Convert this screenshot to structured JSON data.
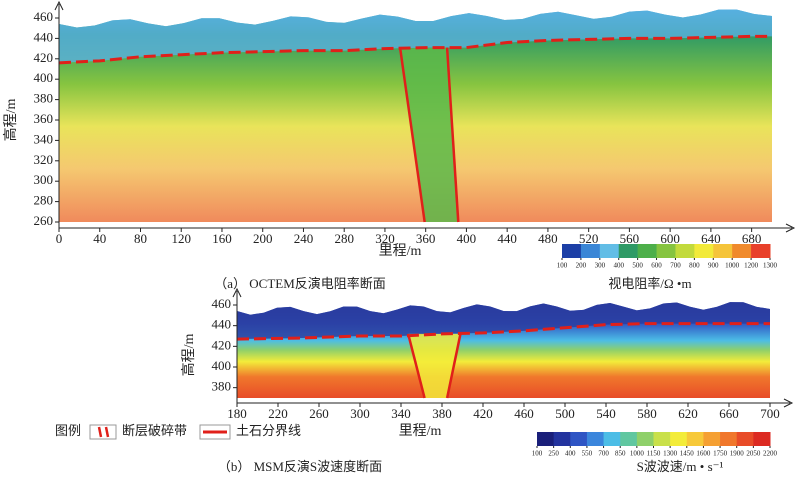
{
  "chart_data": [
    {
      "type": "contour",
      "title": "（a） OCTEM反演电阻率断面",
      "xlabel": "里程/m",
      "ylabel": "高程/m",
      "xlim": [
        0,
        700
      ],
      "ylim": [
        260,
        460
      ],
      "xticks": [
        0,
        40,
        80,
        120,
        160,
        200,
        240,
        280,
        320,
        360,
        400,
        440,
        480,
        520,
        560,
        600,
        640,
        680
      ],
      "yticks": [
        260,
        280,
        300,
        320,
        340,
        360,
        380,
        400,
        420,
        440,
        460
      ],
      "series": [
        {
          "name": "土石分界线",
          "color": "#e0201a",
          "x": [
            0,
            40,
            80,
            120,
            160,
            200,
            240,
            280,
            320,
            360,
            400,
            440,
            480,
            520,
            560,
            600,
            640,
            680,
            700
          ],
          "values": [
            416,
            418,
            422,
            424,
            426,
            427,
            428,
            428,
            430,
            431,
            431,
            436,
            438,
            439,
            440,
            440,
            441,
            442,
            442
          ]
        }
      ],
      "fault_zone": {
        "color": "#e0201a",
        "left": {
          "x": [
            335,
            359
          ],
          "values": [
            430,
            260
          ]
        },
        "right": {
          "x": [
            381,
            392
          ],
          "values": [
            431,
            260
          ]
        }
      },
      "colorbar": {
        "label": "视电阻率/Ω •m",
        "ticks": [
          100,
          200,
          300,
          400,
          500,
          600,
          700,
          800,
          900,
          1000,
          1200,
          1300
        ],
        "colors": [
          "#1c3fa6",
          "#3a86d6",
          "#62bde6",
          "#2f9a66",
          "#4daf4a",
          "#86c440",
          "#c2da3c",
          "#f2ea3a",
          "#f5c43a",
          "#f08a2c",
          "#e8402a"
        ]
      }
    },
    {
      "type": "contour",
      "title": "（b） MSM反演S波速度断面",
      "xlabel": "里程/m",
      "ylabel": "高程/m",
      "xlim": [
        180,
        700
      ],
      "ylim": [
        370,
        460
      ],
      "xticks": [
        180,
        220,
        260,
        300,
        340,
        380,
        420,
        460,
        500,
        540,
        580,
        620,
        660,
        700
      ],
      "yticks": [
        380,
        400,
        420,
        440,
        460
      ],
      "series": [
        {
          "name": "土石分界线",
          "color": "#e0201a",
          "x": [
            180,
            240,
            300,
            340,
            380,
            420,
            460,
            500,
            540,
            580,
            620,
            660,
            700
          ],
          "values": [
            427,
            428,
            430,
            430,
            432,
            433,
            435,
            438,
            441,
            442,
            442,
            442,
            442
          ]
        }
      ],
      "fault_zone": {
        "name": "断层破碎带",
        "color": "#e0201a",
        "left": {
          "x": [
            347,
            363
          ],
          "values": [
            432,
            370
          ]
        },
        "right": {
          "x": [
            398,
            385
          ],
          "values": [
            432,
            370
          ]
        }
      },
      "legend_title": "图例",
      "colorbar": {
        "label": "S波波速/m • s⁻¹",
        "ticks": [
          100,
          250,
          400,
          550,
          700,
          850,
          1000,
          1150,
          1300,
          1450,
          1600,
          1750,
          1900,
          2050,
          2200
        ],
        "colors": [
          "#1a1f7a",
          "#23339e",
          "#2f55c4",
          "#3b86dc",
          "#4cbde6",
          "#60c7a0",
          "#8fd06a",
          "#c9e04a",
          "#f3ec3a",
          "#f7c93a",
          "#f5a033",
          "#f0772c",
          "#e84c28",
          "#dc2a22"
        ]
      }
    }
  ]
}
